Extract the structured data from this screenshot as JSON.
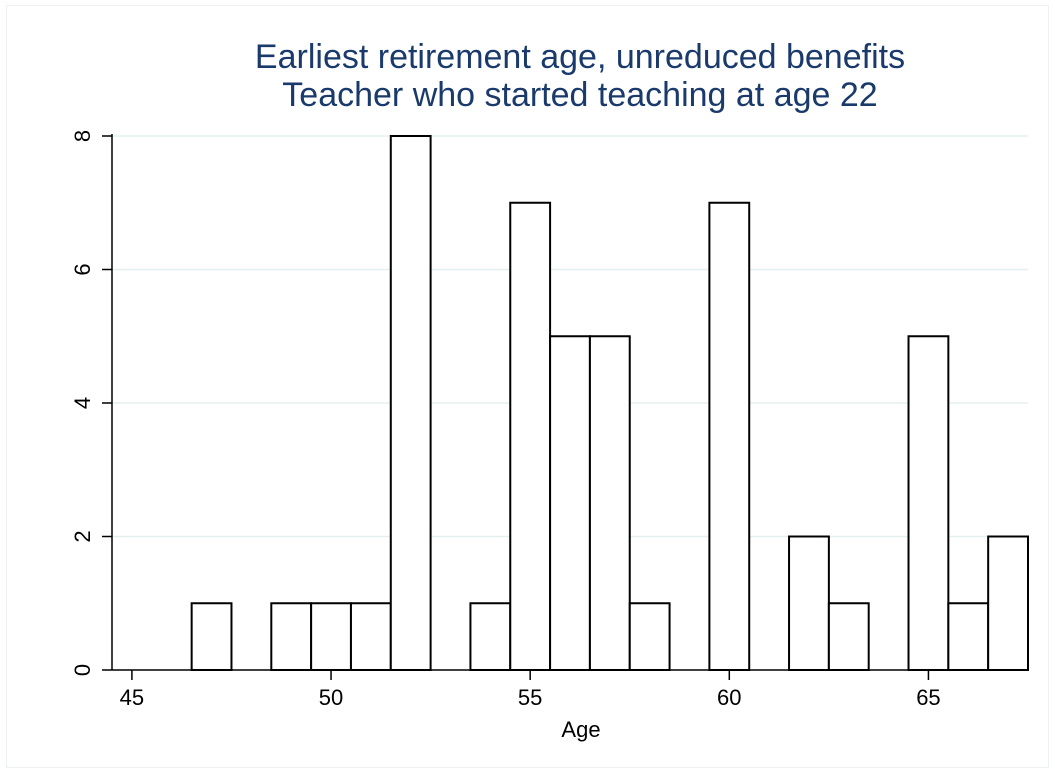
{
  "chart_data": {
    "type": "bar",
    "title": "Earliest retirement age, unreduced benefits",
    "subtitle": "Teacher who started teaching at age 22",
    "xlabel": "Age",
    "ylabel": "",
    "xlim": [
      44.5,
      67.5
    ],
    "ylim": [
      0,
      8
    ],
    "xticks": [
      45,
      50,
      55,
      60,
      65
    ],
    "yticks": [
      0,
      2,
      4,
      6,
      8
    ],
    "grid": true,
    "bar_color": "#ffffff",
    "bar_edge_color": "#000000",
    "grid_color": "#e6efef",
    "title_color": "#1a3a6b",
    "bars": [
      {
        "x": 47,
        "y": 1
      },
      {
        "x": 49,
        "y": 1
      },
      {
        "x": 50,
        "y": 1
      },
      {
        "x": 51,
        "y": 1
      },
      {
        "x": 52,
        "y": 8
      },
      {
        "x": 54,
        "y": 1
      },
      {
        "x": 55,
        "y": 7
      },
      {
        "x": 56,
        "y": 5
      },
      {
        "x": 57,
        "y": 5
      },
      {
        "x": 58,
        "y": 1
      },
      {
        "x": 60,
        "y": 7
      },
      {
        "x": 62,
        "y": 2
      },
      {
        "x": 63,
        "y": 1
      },
      {
        "x": 65,
        "y": 5
      },
      {
        "x": 66,
        "y": 1
      },
      {
        "x": 67,
        "y": 2
      }
    ]
  }
}
